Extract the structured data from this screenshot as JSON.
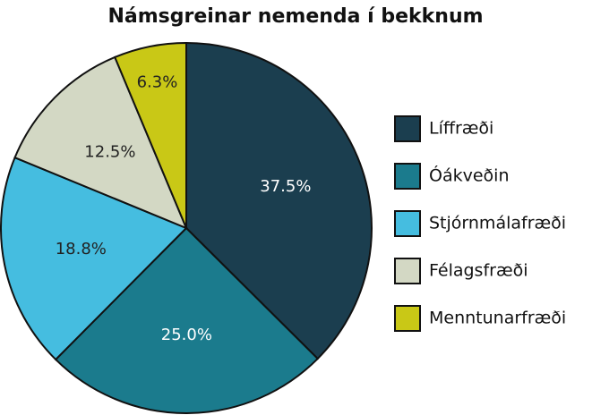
{
  "chart_data": {
    "type": "pie",
    "title": "Námsgreinar nemenda í bekknum",
    "categories": [
      "Líffræði",
      "Óákveðin",
      "Stjórnmálafræði",
      "Félagsfræði",
      "Menntunarfræði"
    ],
    "values": [
      37.5,
      25.0,
      18.8,
      12.5,
      6.3
    ],
    "value_labels": [
      "37.5%",
      "25.0%",
      "18.8%",
      "12.5%",
      "6.3%"
    ],
    "colors": [
      "#1b3e4f",
      "#1b7b8d",
      "#45bde0",
      "#d3d8c4",
      "#c9c816"
    ],
    "legend": "right"
  }
}
